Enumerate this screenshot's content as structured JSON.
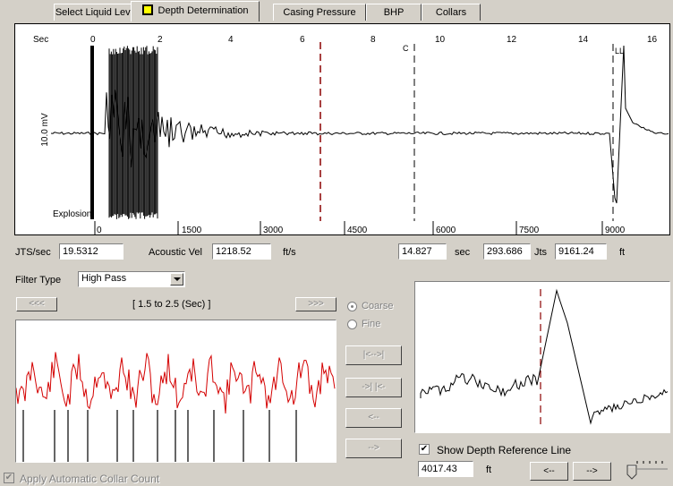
{
  "tabs": [
    {
      "label": "Select Liquid Level"
    },
    {
      "label": "Depth Determination"
    },
    {
      "label": "Casing Pressure"
    },
    {
      "label": "BHP"
    },
    {
      "label": "Collars"
    }
  ],
  "main_chart": {
    "ylabel": "10.0 mV",
    "sec_label": "Sec",
    "top_ticks": [
      "0",
      "2",
      "4",
      "6",
      "8",
      "10",
      "12",
      "14",
      "16"
    ],
    "bottom_ticks": [
      "0",
      "1500",
      "3000",
      "4500",
      "6000",
      "7500",
      "9000"
    ],
    "explosion_label": "Explosion",
    "collar_marker": "C",
    "ll_marker": "LL"
  },
  "stats": {
    "jts_sec_label": "JTS/sec",
    "jts_sec_value": "19.5312",
    "acoustic_label": "Acoustic Vel",
    "acoustic_value": "1218.52",
    "acoustic_unit": "ft/s",
    "sec_value": "14.827",
    "sec_unit": "sec",
    "jts_value": "293.686",
    "jts_unit": "Jts",
    "ft_value": "9161.24",
    "ft_unit": "ft"
  },
  "filter": {
    "label": "Filter Type",
    "selected": "High Pass"
  },
  "range": {
    "prev": "<<<",
    "next": ">>>",
    "text": "[ 1.5  to  2.5 (Sec) ]"
  },
  "mode": {
    "coarse": "Coarse",
    "fine": "Fine"
  },
  "side_buttons": [
    "|<-->|",
    "->| |<-",
    "<--",
    "-->"
  ],
  "depth_ref": {
    "label": "Show Depth Reference Line",
    "value": "4017.43",
    "unit": "ft",
    "left_btn": "<--",
    "right_btn": "-->"
  },
  "collar_count": {
    "label": "Apply Automatic Collar Count"
  }
}
